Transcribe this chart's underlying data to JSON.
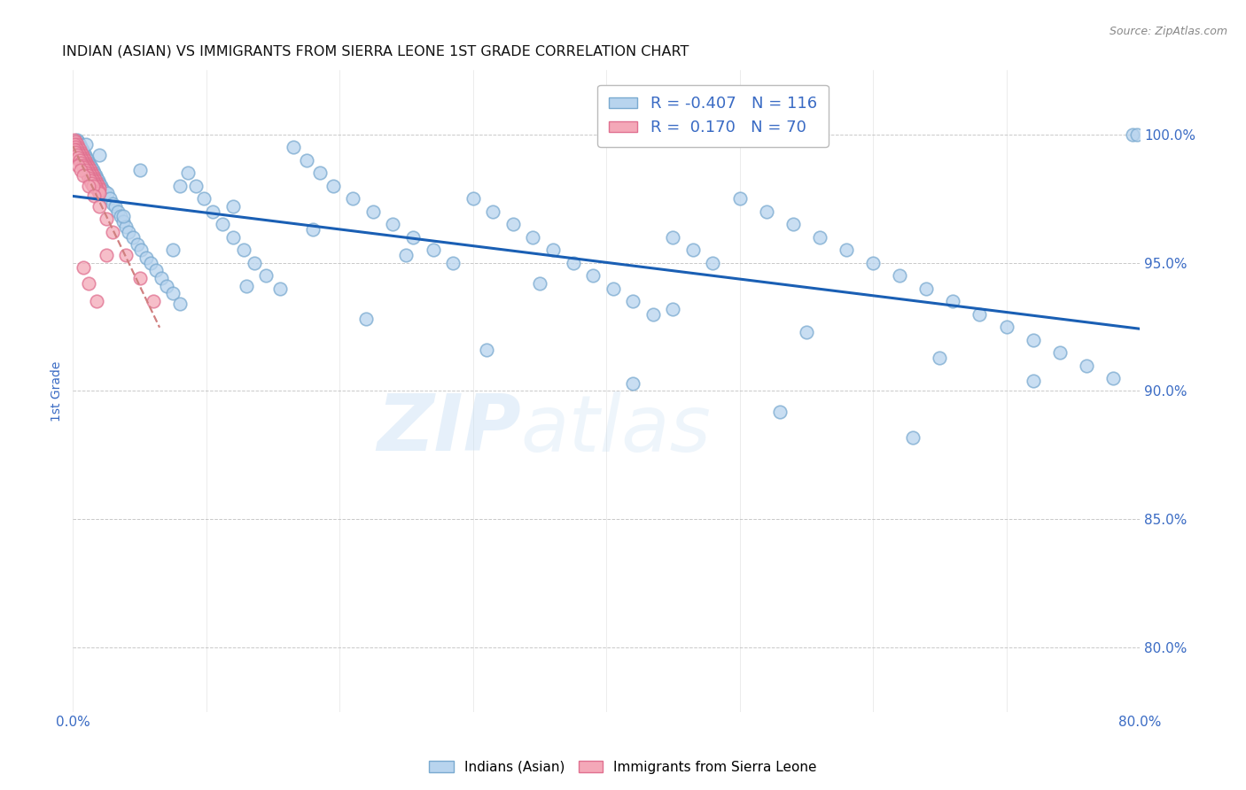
{
  "title": "INDIAN (ASIAN) VS IMMIGRANTS FROM SIERRA LEONE 1ST GRADE CORRELATION CHART",
  "source": "Source: ZipAtlas.com",
  "ylabel_label": "1st Grade",
  "y_tick_labels": [
    "100.0%",
    "95.0%",
    "90.0%",
    "85.0%",
    "80.0%"
  ],
  "y_tick_values": [
    1.0,
    0.95,
    0.9,
    0.85,
    0.8
  ],
  "x_tick_labels": [
    "0.0%",
    "",
    "",
    "",
    "",
    "",
    "",
    "",
    "80.0%"
  ],
  "x_tick_values": [
    0.0,
    0.1,
    0.2,
    0.3,
    0.4,
    0.5,
    0.6,
    0.7,
    0.8
  ],
  "blue_R": -0.407,
  "blue_N": 116,
  "pink_R": 0.17,
  "pink_N": 70,
  "blue_color": "#b8d4ee",
  "pink_color": "#f4a8b8",
  "blue_edge": "#7aaad0",
  "pink_edge": "#e07090",
  "trend_blue_color": "#1a5fb4",
  "trend_pink_color": "#d08080",
  "legend_label_blue": "Indians (Asian)",
  "legend_label_pink": "Immigrants from Sierra Leone",
  "watermark_zip": "ZIP",
  "watermark_atlas": "atlas",
  "background_color": "#ffffff",
  "grid_color": "#bbbbbb",
  "title_color": "#111111",
  "tick_label_color": "#3a6bc4",
  "xlim": [
    0.0,
    0.8
  ],
  "ylim": [
    0.775,
    1.025
  ],
  "blue_x": [
    0.003,
    0.004,
    0.005,
    0.006,
    0.007,
    0.008,
    0.009,
    0.01,
    0.011,
    0.012,
    0.013,
    0.014,
    0.015,
    0.016,
    0.017,
    0.018,
    0.019,
    0.02,
    0.021,
    0.022,
    0.024,
    0.026,
    0.028,
    0.03,
    0.032,
    0.034,
    0.036,
    0.038,
    0.04,
    0.042,
    0.045,
    0.048,
    0.051,
    0.055,
    0.058,
    0.062,
    0.066,
    0.07,
    0.075,
    0.08,
    0.086,
    0.092,
    0.098,
    0.105,
    0.112,
    0.12,
    0.128,
    0.136,
    0.145,
    0.155,
    0.165,
    0.175,
    0.185,
    0.195,
    0.21,
    0.225,
    0.24,
    0.255,
    0.27,
    0.285,
    0.3,
    0.315,
    0.33,
    0.345,
    0.36,
    0.375,
    0.39,
    0.405,
    0.42,
    0.435,
    0.45,
    0.465,
    0.48,
    0.5,
    0.52,
    0.54,
    0.56,
    0.58,
    0.6,
    0.62,
    0.64,
    0.66,
    0.68,
    0.7,
    0.72,
    0.74,
    0.76,
    0.78,
    0.795,
    0.798,
    0.01,
    0.02,
    0.05,
    0.08,
    0.12,
    0.18,
    0.25,
    0.35,
    0.45,
    0.55,
    0.65,
    0.72,
    0.038,
    0.075,
    0.13,
    0.22,
    0.31,
    0.42,
    0.53,
    0.63
  ],
  "blue_y": [
    0.998,
    0.997,
    0.996,
    0.995,
    0.994,
    0.993,
    0.992,
    0.991,
    0.99,
    0.989,
    0.988,
    0.987,
    0.986,
    0.985,
    0.984,
    0.983,
    0.982,
    0.981,
    0.98,
    0.979,
    0.978,
    0.977,
    0.975,
    0.973,
    0.972,
    0.97,
    0.968,
    0.966,
    0.964,
    0.962,
    0.96,
    0.957,
    0.955,
    0.952,
    0.95,
    0.947,
    0.944,
    0.941,
    0.938,
    0.934,
    0.985,
    0.98,
    0.975,
    0.97,
    0.965,
    0.96,
    0.955,
    0.95,
    0.945,
    0.94,
    0.995,
    0.99,
    0.985,
    0.98,
    0.975,
    0.97,
    0.965,
    0.96,
    0.955,
    0.95,
    0.975,
    0.97,
    0.965,
    0.96,
    0.955,
    0.95,
    0.945,
    0.94,
    0.935,
    0.93,
    0.96,
    0.955,
    0.95,
    0.975,
    0.97,
    0.965,
    0.96,
    0.955,
    0.95,
    0.945,
    0.94,
    0.935,
    0.93,
    0.925,
    0.92,
    0.915,
    0.91,
    0.905,
    1.0,
    1.0,
    0.996,
    0.992,
    0.986,
    0.98,
    0.972,
    0.963,
    0.953,
    0.942,
    0.932,
    0.923,
    0.913,
    0.904,
    0.968,
    0.955,
    0.941,
    0.928,
    0.916,
    0.903,
    0.892,
    0.882
  ],
  "pink_x": [
    0.001,
    0.002,
    0.003,
    0.004,
    0.005,
    0.006,
    0.007,
    0.008,
    0.009,
    0.01,
    0.011,
    0.012,
    0.013,
    0.014,
    0.015,
    0.016,
    0.017,
    0.018,
    0.019,
    0.02,
    0.001,
    0.002,
    0.003,
    0.004,
    0.005,
    0.006,
    0.007,
    0.008,
    0.009,
    0.01,
    0.011,
    0.012,
    0.013,
    0.014,
    0.015,
    0.016,
    0.017,
    0.018,
    0.019,
    0.02,
    0.001,
    0.002,
    0.003,
    0.004,
    0.005,
    0.006,
    0.007,
    0.008,
    0.009,
    0.01,
    0.011,
    0.012,
    0.013,
    0.014,
    0.015,
    0.004,
    0.006,
    0.008,
    0.012,
    0.016,
    0.02,
    0.025,
    0.03,
    0.04,
    0.05,
    0.06,
    0.008,
    0.012,
    0.018,
    0.025
  ],
  "pink_y": [
    0.998,
    0.997,
    0.996,
    0.995,
    0.994,
    0.993,
    0.992,
    0.991,
    0.99,
    0.989,
    0.988,
    0.987,
    0.986,
    0.985,
    0.984,
    0.983,
    0.982,
    0.981,
    0.98,
    0.979,
    0.996,
    0.995,
    0.994,
    0.993,
    0.992,
    0.991,
    0.99,
    0.989,
    0.988,
    0.987,
    0.986,
    0.985,
    0.984,
    0.983,
    0.982,
    0.981,
    0.98,
    0.979,
    0.978,
    0.977,
    0.994,
    0.993,
    0.992,
    0.991,
    0.99,
    0.989,
    0.988,
    0.987,
    0.986,
    0.985,
    0.984,
    0.983,
    0.982,
    0.981,
    0.98,
    0.988,
    0.986,
    0.984,
    0.98,
    0.976,
    0.972,
    0.967,
    0.962,
    0.953,
    0.944,
    0.935,
    0.948,
    0.942,
    0.935,
    0.953
  ]
}
